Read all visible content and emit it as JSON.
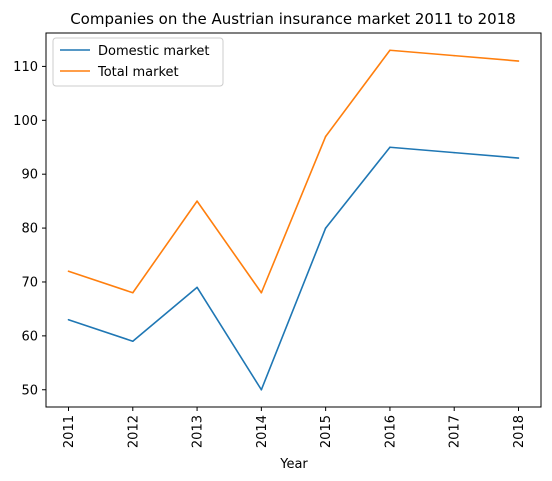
{
  "chart_data": {
    "type": "line",
    "title": "Companies on the Austrian insurance market 2011 to 2018",
    "xlabel": "Year",
    "ylabel": "",
    "categories": [
      "2011",
      "2012",
      "2013",
      "2014",
      "2015",
      "2016",
      "2017",
      "2018"
    ],
    "ylim": [
      46.8,
      116.2
    ],
    "yticks": [
      50,
      60,
      70,
      80,
      90,
      100,
      110
    ],
    "grid": false,
    "legend_position": "top-left",
    "series": [
      {
        "name": "Domestic market",
        "color": "#1f77b4",
        "values": [
          63,
          59,
          69,
          50,
          80,
          95,
          94,
          93
        ]
      },
      {
        "name": "Total market",
        "color": "#ff7f0e",
        "values": [
          72,
          68,
          85,
          68,
          97,
          113,
          112,
          111
        ]
      }
    ]
  }
}
